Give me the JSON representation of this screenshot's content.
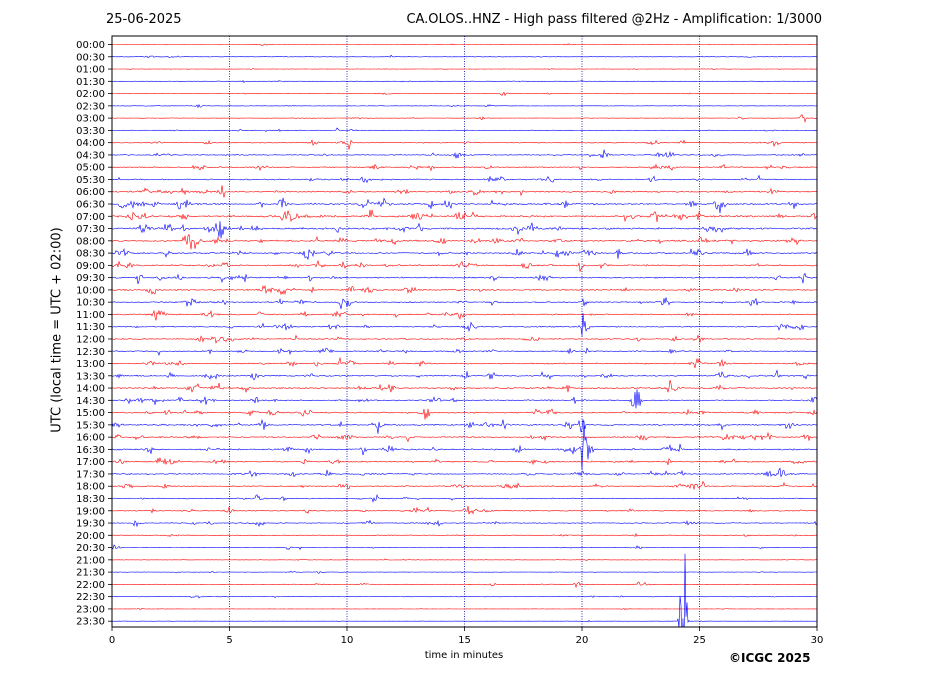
{
  "header": {
    "date": "25-06-2025",
    "title": "CA.OLOS..HNZ - High pass filtered @2Hz - Amplification: 1/3000"
  },
  "footer": {
    "copyright": "©ICGC 2025"
  },
  "colors": {
    "odd_rows": "#ff0000",
    "even_rows": "#0000ff",
    "grid": "#0000aa",
    "frame": "#000000"
  },
  "chart_data": {
    "type": "line",
    "subtype": "helicorder",
    "xlabel": "time in minutes",
    "ylabel": "UTC (local time = UTC + 02:00)",
    "xlim": [
      0,
      30
    ],
    "x_ticks": [
      "0",
      "5",
      "10",
      "15",
      "20",
      "25",
      "30"
    ],
    "vertical_gridlines_minutes": [
      5,
      10,
      15,
      20,
      25
    ],
    "row_labels": [
      "00:00",
      "00:30",
      "01:00",
      "01:30",
      "02:00",
      "02:30",
      "03:00",
      "03:30",
      "04:00",
      "04:30",
      "05:00",
      "05:30",
      "06:00",
      "06:30",
      "07:00",
      "07:30",
      "08:00",
      "08:30",
      "09:00",
      "09:30",
      "10:00",
      "10:30",
      "11:00",
      "11:30",
      "12:00",
      "12:30",
      "13:00",
      "13:30",
      "14:00",
      "14:30",
      "15:00",
      "15:30",
      "16:00",
      "16:30",
      "17:00",
      "17:30",
      "18:00",
      "18:30",
      "19:00",
      "19:30",
      "20:00",
      "20:30",
      "21:00",
      "21:30",
      "22:00",
      "22:30",
      "23:00",
      "23:30"
    ],
    "row_noise_level": [
      0.3,
      0.4,
      0.4,
      0.4,
      0.4,
      0.4,
      0.4,
      0.6,
      0.8,
      0.9,
      1.0,
      1.1,
      1.2,
      1.5,
      1.7,
      1.7,
      1.6,
      1.4,
      1.3,
      1.2,
      1.2,
      1.2,
      1.1,
      1.1,
      1.1,
      1.1,
      1.1,
      1.2,
      1.3,
      1.2,
      1.2,
      1.3,
      1.2,
      1.3,
      1.2,
      1.1,
      1.0,
      0.9,
      0.9,
      0.8,
      0.6,
      0.5,
      0.4,
      0.4,
      0.4,
      0.4,
      0.3,
      0.2
    ],
    "notable_events": [
      {
        "row": "02:00",
        "minute": 16.7,
        "amplitude": 0.5
      },
      {
        "row": "03:00",
        "minute": 29.4,
        "amplitude": 0.8
      },
      {
        "row": "04:00",
        "minute": 10.1,
        "amplitude": 0.6
      },
      {
        "row": "07:00",
        "minute": 11.0,
        "amplitude": 0.6
      },
      {
        "row": "09:30",
        "minute": 29.4,
        "amplitude": 0.8
      },
      {
        "row": "11:30",
        "minute": 20.1,
        "amplitude": 2.5
      },
      {
        "row": "13:30",
        "minute": 15.1,
        "amplitude": 0.7
      },
      {
        "row": "14:30",
        "minute": 22.3,
        "amplitude": 5.0
      },
      {
        "row": "15:30",
        "minute": 20.0,
        "amplitude": 1.2
      },
      {
        "row": "16:30",
        "minute": 20.1,
        "amplitude": 3.5
      },
      {
        "row": "18:30",
        "minute": 11.2,
        "amplitude": 0.6
      },
      {
        "row": "19:30",
        "minute": 13.9,
        "amplitude": 0.5
      },
      {
        "row": "22:00",
        "minute": 19.8,
        "amplitude": 0.4
      },
      {
        "row": "22:00",
        "minute": 22.5,
        "amplitude": 0.4
      },
      {
        "row": "23:30",
        "minute": 24.3,
        "amplitude": 14.0
      }
    ],
    "grid": true
  }
}
